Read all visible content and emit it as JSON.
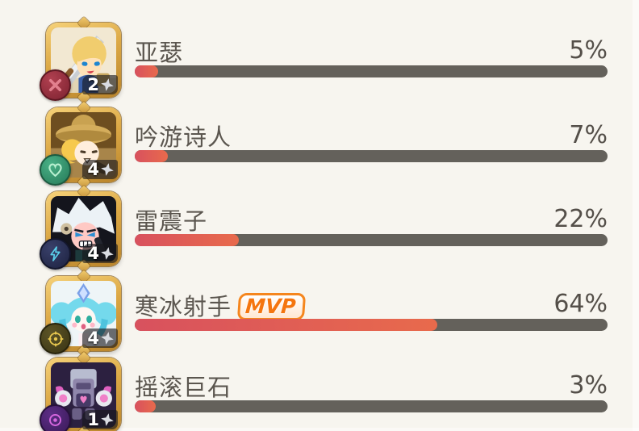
{
  "page": {
    "background": "#f7f5ef",
    "description": "in-game damage share statistics list"
  },
  "colors": {
    "bar_track": "#64615b",
    "bar_fill_start": "#d8515e",
    "bar_fill_end": "#e86a4c",
    "name_text": "#5b564f",
    "percent_text": "#544f49",
    "mvp_orange": "#f5750f",
    "frame_gold": "#dcA845"
  },
  "characters": [
    {
      "name": "亚瑟",
      "stars": "2",
      "percent": 5,
      "percent_label": "5%",
      "class_icon": "crossed-swords-icon"
    },
    {
      "name": "吟游诗人",
      "stars": "4",
      "percent": 7,
      "percent_label": "7%",
      "class_icon": "heart-icon"
    },
    {
      "name": "雷震子",
      "stars": "4",
      "percent": 22,
      "percent_label": "22%",
      "class_icon": "lightning-icon"
    },
    {
      "name": "寒冰射手",
      "stars": "4",
      "percent": 64,
      "percent_label": "64%",
      "class_icon": "crosshair-icon",
      "mvp_label": "MVP"
    },
    {
      "name": "摇滚巨石",
      "stars": "1",
      "percent": 3,
      "percent_label": "3%",
      "class_icon": "swirl-icon"
    }
  ],
  "chart_data": {
    "type": "bar",
    "orientation": "horizontal",
    "categories": [
      "亚瑟",
      "吟游诗人",
      "雷震子",
      "寒冰射手",
      "摇滚巨石"
    ],
    "values": [
      5,
      7,
      22,
      64,
      3
    ],
    "value_labels": [
      "5%",
      "7%",
      "22%",
      "64%",
      "3%"
    ],
    "title": "",
    "xlabel": "",
    "ylabel": "",
    "xlim": [
      0,
      100
    ],
    "annotations": [
      "MVP on 寒冰射手"
    ]
  }
}
